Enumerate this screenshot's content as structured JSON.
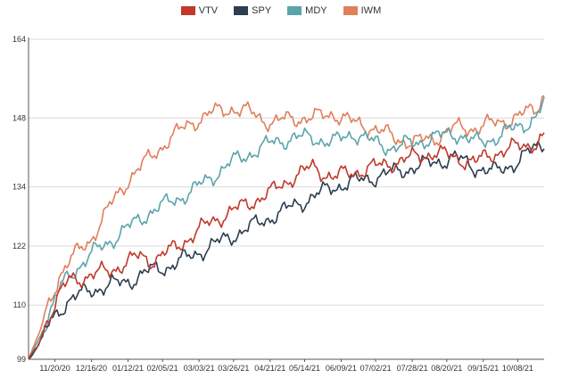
{
  "chart_data": {
    "type": "line",
    "ylim": [
      99,
      164
    ],
    "yticks": [
      99,
      110,
      122,
      134,
      148,
      164
    ],
    "xtick_labels": [
      "11/20/20",
      "12/16/20",
      "01/12/21",
      "02/05/21",
      "03/03/21",
      "03/26/21",
      "04/21/21",
      "05/14/21",
      "06/09/21",
      "07/02/21",
      "07/28/21",
      "08/20/21",
      "09/15/21",
      "10/08/21"
    ],
    "xtick_positions": [
      13,
      31,
      49,
      66,
      84,
      101,
      119,
      136,
      154,
      171,
      189,
      206,
      224,
      241
    ],
    "x_count": 255,
    "legend_position": "top-center",
    "grid": true,
    "series": [
      {
        "name": "VTV",
        "color": "#c0392b",
        "anchors": [
          [
            0,
            99
          ],
          [
            5,
            102
          ],
          [
            10,
            108
          ],
          [
            15,
            112
          ],
          [
            20,
            115
          ],
          [
            30,
            116
          ],
          [
            40,
            117
          ],
          [
            45,
            118
          ],
          [
            55,
            120
          ],
          [
            60,
            119
          ],
          [
            70,
            121
          ],
          [
            80,
            124
          ],
          [
            90,
            127
          ],
          [
            100,
            129
          ],
          [
            110,
            131
          ],
          [
            120,
            133
          ],
          [
            130,
            136
          ],
          [
            140,
            138
          ],
          [
            150,
            136
          ],
          [
            160,
            137
          ],
          [
            170,
            138
          ],
          [
            180,
            139
          ],
          [
            190,
            140
          ],
          [
            200,
            141
          ],
          [
            210,
            140
          ],
          [
            220,
            139
          ],
          [
            230,
            141
          ],
          [
            240,
            142
          ],
          [
            250,
            143
          ],
          [
            254,
            144
          ]
        ]
      },
      {
        "name": "SPY",
        "color": "#2c3e50",
        "anchors": [
          [
            0,
            99
          ],
          [
            5,
            102
          ],
          [
            10,
            106
          ],
          [
            15,
            109
          ],
          [
            20,
            111
          ],
          [
            30,
            113
          ],
          [
            40,
            114
          ],
          [
            50,
            115
          ],
          [
            55,
            116
          ],
          [
            60,
            117
          ],
          [
            70,
            118
          ],
          [
            80,
            120
          ],
          [
            90,
            122
          ],
          [
            100,
            124
          ],
          [
            110,
            126
          ],
          [
            120,
            128
          ],
          [
            130,
            130
          ],
          [
            140,
            132
          ],
          [
            150,
            134
          ],
          [
            160,
            135
          ],
          [
            170,
            136
          ],
          [
            180,
            137
          ],
          [
            190,
            138
          ],
          [
            200,
            139
          ],
          [
            210,
            140
          ],
          [
            220,
            138
          ],
          [
            230,
            137
          ],
          [
            240,
            139
          ],
          [
            250,
            142
          ],
          [
            254,
            143
          ]
        ]
      },
      {
        "name": "MDY",
        "color": "#5ba4ac",
        "anchors": [
          [
            0,
            99
          ],
          [
            5,
            103
          ],
          [
            10,
            108
          ],
          [
            15,
            113
          ],
          [
            20,
            116
          ],
          [
            30,
            120
          ],
          [
            40,
            123
          ],
          [
            50,
            126
          ],
          [
            60,
            129
          ],
          [
            70,
            131
          ],
          [
            80,
            133
          ],
          [
            90,
            136
          ],
          [
            100,
            139
          ],
          [
            110,
            141
          ],
          [
            120,
            143
          ],
          [
            130,
            144
          ],
          [
            140,
            144
          ],
          [
            150,
            143
          ],
          [
            160,
            145
          ],
          [
            170,
            143
          ],
          [
            180,
            142
          ],
          [
            190,
            143
          ],
          [
            200,
            144
          ],
          [
            210,
            145
          ],
          [
            220,
            143
          ],
          [
            230,
            144
          ],
          [
            240,
            146
          ],
          [
            250,
            148
          ],
          [
            254,
            151
          ]
        ]
      },
      {
        "name": "IWM",
        "color": "#e07f5c",
        "anchors": [
          [
            0,
            99
          ],
          [
            5,
            104
          ],
          [
            10,
            110
          ],
          [
            15,
            116
          ],
          [
            20,
            119
          ],
          [
            30,
            123
          ],
          [
            40,
            130
          ],
          [
            50,
            136
          ],
          [
            60,
            140
          ],
          [
            70,
            144
          ],
          [
            80,
            147
          ],
          [
            90,
            149
          ],
          [
            100,
            150
          ],
          [
            110,
            149
          ],
          [
            120,
            147
          ],
          [
            130,
            148
          ],
          [
            140,
            148
          ],
          [
            150,
            149
          ],
          [
            160,
            147
          ],
          [
            170,
            146
          ],
          [
            180,
            144
          ],
          [
            190,
            143
          ],
          [
            200,
            144
          ],
          [
            210,
            146
          ],
          [
            220,
            146
          ],
          [
            230,
            147
          ],
          [
            240,
            148
          ],
          [
            250,
            150
          ],
          [
            254,
            153
          ]
        ]
      }
    ]
  }
}
